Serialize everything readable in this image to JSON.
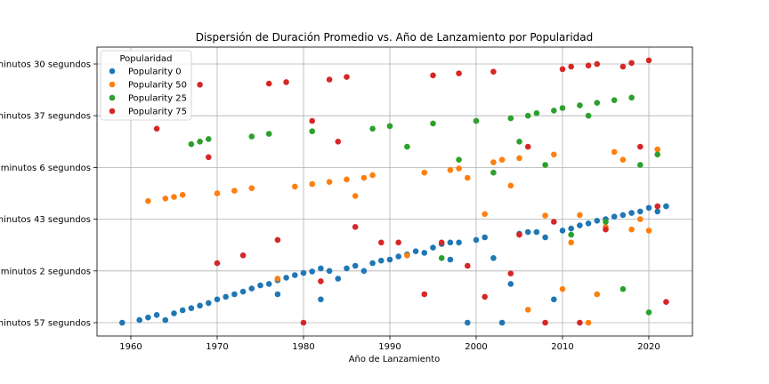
{
  "chart_data": {
    "type": "scatter",
    "title": "Dispersión de Duración Promedio vs. Año de Lanzamiento por Popularidad",
    "xlabel": "Año de Lanzamiento",
    "ylabel": "",
    "xlim": [
      1956,
      2025
    ],
    "ylim": [
      0,
      5.3
    ],
    "grid": true,
    "legend_position": "top-left",
    "legend_title": "Popularidad",
    "x_ticks": [
      1960,
      1970,
      1980,
      1990,
      2000,
      2010,
      2020
    ],
    "x_tick_labels": [
      "1960",
      "1970",
      "1980",
      "1990",
      "2000",
      "2010",
      "2020"
    ],
    "y_ticks": [
      0,
      1,
      2,
      3,
      4,
      5
    ],
    "y_tick_labels": [
      "minutos 57 segundos",
      "minutos 2 segundos",
      "minutos 43 segundos",
      "minutos 6 segundos",
      "minutos 37 segundos",
      "minutos 30 segundos"
    ],
    "series": [
      {
        "name": "Popularity 0",
        "color": "#1f77b4",
        "points": [
          [
            1959,
            0.0
          ],
          [
            1961,
            0.05
          ],
          [
            1962,
            0.1
          ],
          [
            1963,
            0.15
          ],
          [
            1964,
            0.05
          ],
          [
            1965,
            0.18
          ],
          [
            1966,
            0.24
          ],
          [
            1967,
            0.28
          ],
          [
            1968,
            0.33
          ],
          [
            1969,
            0.38
          ],
          [
            1970,
            0.45
          ],
          [
            1971,
            0.5
          ],
          [
            1972,
            0.55
          ],
          [
            1973,
            0.6
          ],
          [
            1974,
            0.66
          ],
          [
            1975,
            0.72
          ],
          [
            1976,
            0.75
          ],
          [
            1977,
            0.55
          ],
          [
            1977,
            0.82
          ],
          [
            1978,
            0.87
          ],
          [
            1979,
            0.92
          ],
          [
            1980,
            0.96
          ],
          [
            1981,
            0.99
          ],
          [
            1982,
            0.45
          ],
          [
            1982,
            1.05
          ],
          [
            1983,
            1.0
          ],
          [
            1984,
            0.85
          ],
          [
            1985,
            1.05
          ],
          [
            1986,
            1.1
          ],
          [
            1987,
            1.0
          ],
          [
            1988,
            1.15
          ],
          [
            1989,
            1.2
          ],
          [
            1990,
            1.22
          ],
          [
            1991,
            1.28
          ],
          [
            1992,
            1.32
          ],
          [
            1993,
            1.38
          ],
          [
            1994,
            1.35
          ],
          [
            1995,
            1.45
          ],
          [
            1996,
            1.52
          ],
          [
            1997,
            1.55
          ],
          [
            1997,
            1.22
          ],
          [
            1998,
            1.55
          ],
          [
            1999,
            0.0
          ],
          [
            2000,
            1.6
          ],
          [
            2001,
            1.65
          ],
          [
            2002,
            1.25
          ],
          [
            2003,
            0.0
          ],
          [
            2004,
            0.75
          ],
          [
            2005,
            1.72
          ],
          [
            2006,
            1.75
          ],
          [
            2007,
            1.75
          ],
          [
            2008,
            1.65
          ],
          [
            2009,
            0.45
          ],
          [
            2010,
            1.78
          ],
          [
            2011,
            1.82
          ],
          [
            2012,
            1.88
          ],
          [
            2013,
            1.92
          ],
          [
            2014,
            1.97
          ],
          [
            2015,
            2.0
          ],
          [
            2016,
            2.05
          ],
          [
            2017,
            2.08
          ],
          [
            2018,
            2.12
          ],
          [
            2019,
            2.15
          ],
          [
            2020,
            2.22
          ],
          [
            2021,
            2.15
          ],
          [
            2022,
            2.25
          ]
        ]
      },
      {
        "name": "Popularity 50",
        "color": "#ff7f0e",
        "points": [
          [
            1962,
            2.35
          ],
          [
            1964,
            2.4
          ],
          [
            1965,
            2.43
          ],
          [
            1966,
            2.47
          ],
          [
            1970,
            2.5
          ],
          [
            1972,
            2.55
          ],
          [
            1974,
            2.6
          ],
          [
            1977,
            0.85
          ],
          [
            1979,
            2.63
          ],
          [
            1981,
            2.68
          ],
          [
            1983,
            2.72
          ],
          [
            1985,
            2.77
          ],
          [
            1986,
            2.45
          ],
          [
            1987,
            2.8
          ],
          [
            1988,
            2.85
          ],
          [
            1992,
            1.3
          ],
          [
            1994,
            2.9
          ],
          [
            1997,
            2.95
          ],
          [
            1998,
            2.98
          ],
          [
            1999,
            2.8
          ],
          [
            2001,
            2.1
          ],
          [
            2002,
            3.1
          ],
          [
            2003,
            3.15
          ],
          [
            2004,
            2.65
          ],
          [
            2005,
            3.18
          ],
          [
            2006,
            0.25
          ],
          [
            2008,
            2.07
          ],
          [
            2009,
            3.25
          ],
          [
            2010,
            0.65
          ],
          [
            2011,
            1.55
          ],
          [
            2012,
            2.08
          ],
          [
            2013,
            0.0
          ],
          [
            2014,
            0.55
          ],
          [
            2015,
            1.85
          ],
          [
            2016,
            3.3
          ],
          [
            2017,
            3.15
          ],
          [
            2018,
            1.8
          ],
          [
            2019,
            2.0
          ],
          [
            2020,
            1.78
          ],
          [
            2021,
            3.35
          ]
        ]
      },
      {
        "name": "Popularity 25",
        "color": "#2ca02c",
        "points": [
          [
            1967,
            3.45
          ],
          [
            1968,
            3.5
          ],
          [
            1969,
            3.55
          ],
          [
            1974,
            3.6
          ],
          [
            1976,
            3.65
          ],
          [
            1981,
            3.7
          ],
          [
            1988,
            3.75
          ],
          [
            1990,
            3.8
          ],
          [
            1992,
            3.4
          ],
          [
            1995,
            3.85
          ],
          [
            1996,
            1.25
          ],
          [
            1998,
            3.15
          ],
          [
            2000,
            3.9
          ],
          [
            2002,
            2.9
          ],
          [
            2004,
            3.95
          ],
          [
            2005,
            3.5
          ],
          [
            2006,
            4.0
          ],
          [
            2007,
            4.05
          ],
          [
            2008,
            3.05
          ],
          [
            2009,
            4.1
          ],
          [
            2010,
            4.15
          ],
          [
            2011,
            1.7
          ],
          [
            2012,
            4.2
          ],
          [
            2013,
            4.0
          ],
          [
            2014,
            4.25
          ],
          [
            2015,
            1.95
          ],
          [
            2016,
            4.3
          ],
          [
            2017,
            0.65
          ],
          [
            2018,
            4.35
          ],
          [
            2019,
            3.05
          ],
          [
            2020,
            0.2
          ],
          [
            2021,
            3.25
          ]
        ]
      },
      {
        "name": "Popularity 75",
        "color": "#d62728",
        "points": [
          [
            1963,
            3.75
          ],
          [
            1968,
            4.6
          ],
          [
            1969,
            3.2
          ],
          [
            1970,
            1.15
          ],
          [
            1973,
            1.3
          ],
          [
            1976,
            4.62
          ],
          [
            1977,
            1.6
          ],
          [
            1978,
            4.65
          ],
          [
            1980,
            0.0
          ],
          [
            1981,
            3.9
          ],
          [
            1982,
            0.8
          ],
          [
            1983,
            4.7
          ],
          [
            1984,
            3.5
          ],
          [
            1985,
            4.75
          ],
          [
            1986,
            1.85
          ],
          [
            1989,
            1.55
          ],
          [
            1991,
            1.55
          ],
          [
            1994,
            0.55
          ],
          [
            1995,
            4.78
          ],
          [
            1996,
            1.55
          ],
          [
            1998,
            4.82
          ],
          [
            1999,
            1.1
          ],
          [
            2001,
            0.5
          ],
          [
            2002,
            4.85
          ],
          [
            2004,
            0.95
          ],
          [
            2005,
            1.7
          ],
          [
            2006,
            3.4
          ],
          [
            2008,
            0.0
          ],
          [
            2009,
            1.95
          ],
          [
            2010,
            4.9
          ],
          [
            2011,
            4.95
          ],
          [
            2012,
            0.0
          ],
          [
            2013,
            4.97
          ],
          [
            2014,
            5.0
          ],
          [
            2015,
            1.8
          ],
          [
            2017,
            4.95
          ],
          [
            2018,
            5.02
          ],
          [
            2019,
            3.4
          ],
          [
            2020,
            5.07
          ],
          [
            2021,
            2.25
          ],
          [
            2022,
            0.4
          ]
        ]
      }
    ]
  }
}
